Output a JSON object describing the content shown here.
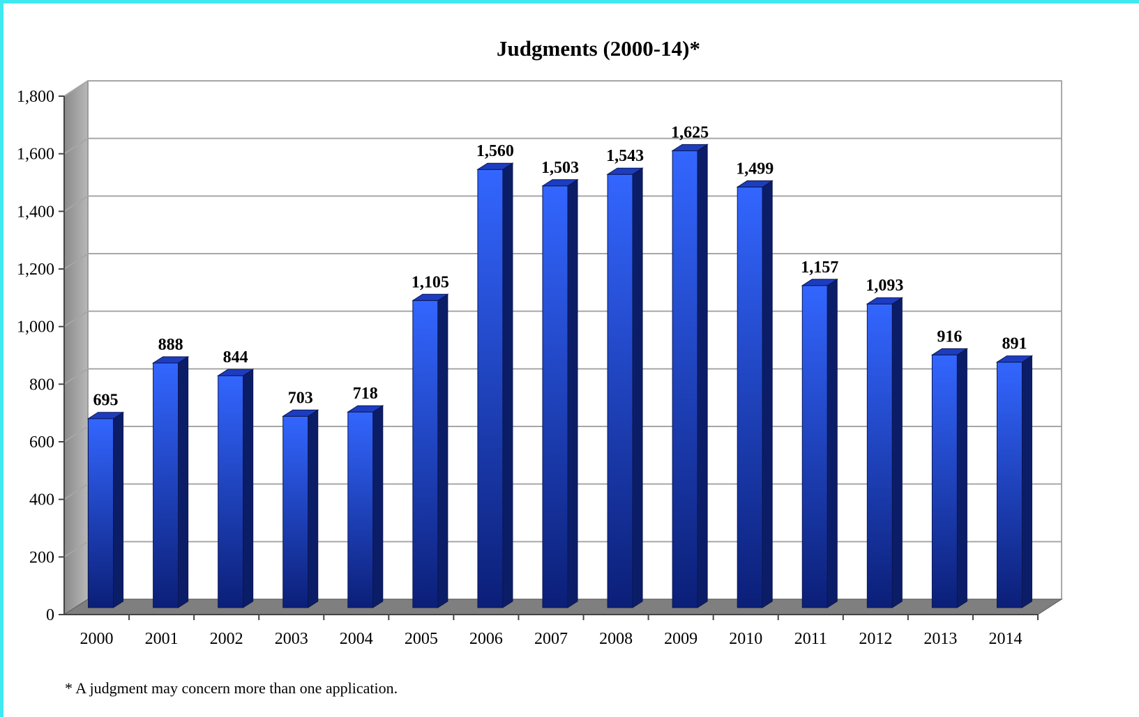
{
  "chart_data": {
    "type": "bar",
    "title": "Judgments (2000-14)*",
    "footnote": "* A judgment may concern more than one application.",
    "categories": [
      "2000",
      "2001",
      "2002",
      "2003",
      "2004",
      "2005",
      "2006",
      "2007",
      "2008",
      "2009",
      "2010",
      "2011",
      "2012",
      "2013",
      "2014"
    ],
    "values": [
      695,
      888,
      844,
      703,
      718,
      1105,
      1560,
      1503,
      1543,
      1625,
      1499,
      1157,
      1093,
      916,
      891
    ],
    "value_labels": [
      "695",
      "888",
      "844",
      "703",
      "718",
      "1,105",
      "1,560",
      "1,503",
      "1,543",
      "1,625",
      "1,499",
      "1,157",
      "1,093",
      "916",
      "891"
    ],
    "ylim": [
      0,
      1800
    ],
    "yticks": [
      0,
      200,
      400,
      600,
      800,
      1000,
      1200,
      1400,
      1600,
      1800
    ],
    "ytick_labels": [
      "0",
      "200",
      "400",
      "600",
      "800",
      "1,000",
      "1,200",
      "1,400",
      "1,600",
      "1,800"
    ],
    "xlabel": "",
    "ylabel": "",
    "grid": true,
    "style": "3d-column",
    "colors": {
      "bar_light": "#3366ff",
      "bar_dark": "#0b1f78",
      "bar_side": "#0c1d68",
      "bar_top": "#1d3dc0",
      "grid": "#a6a6a6",
      "back_wall": "#ffffff",
      "side_wall": "#9a9a9a",
      "floor": "#7f7f7f",
      "frame": "#40e8f0"
    }
  }
}
